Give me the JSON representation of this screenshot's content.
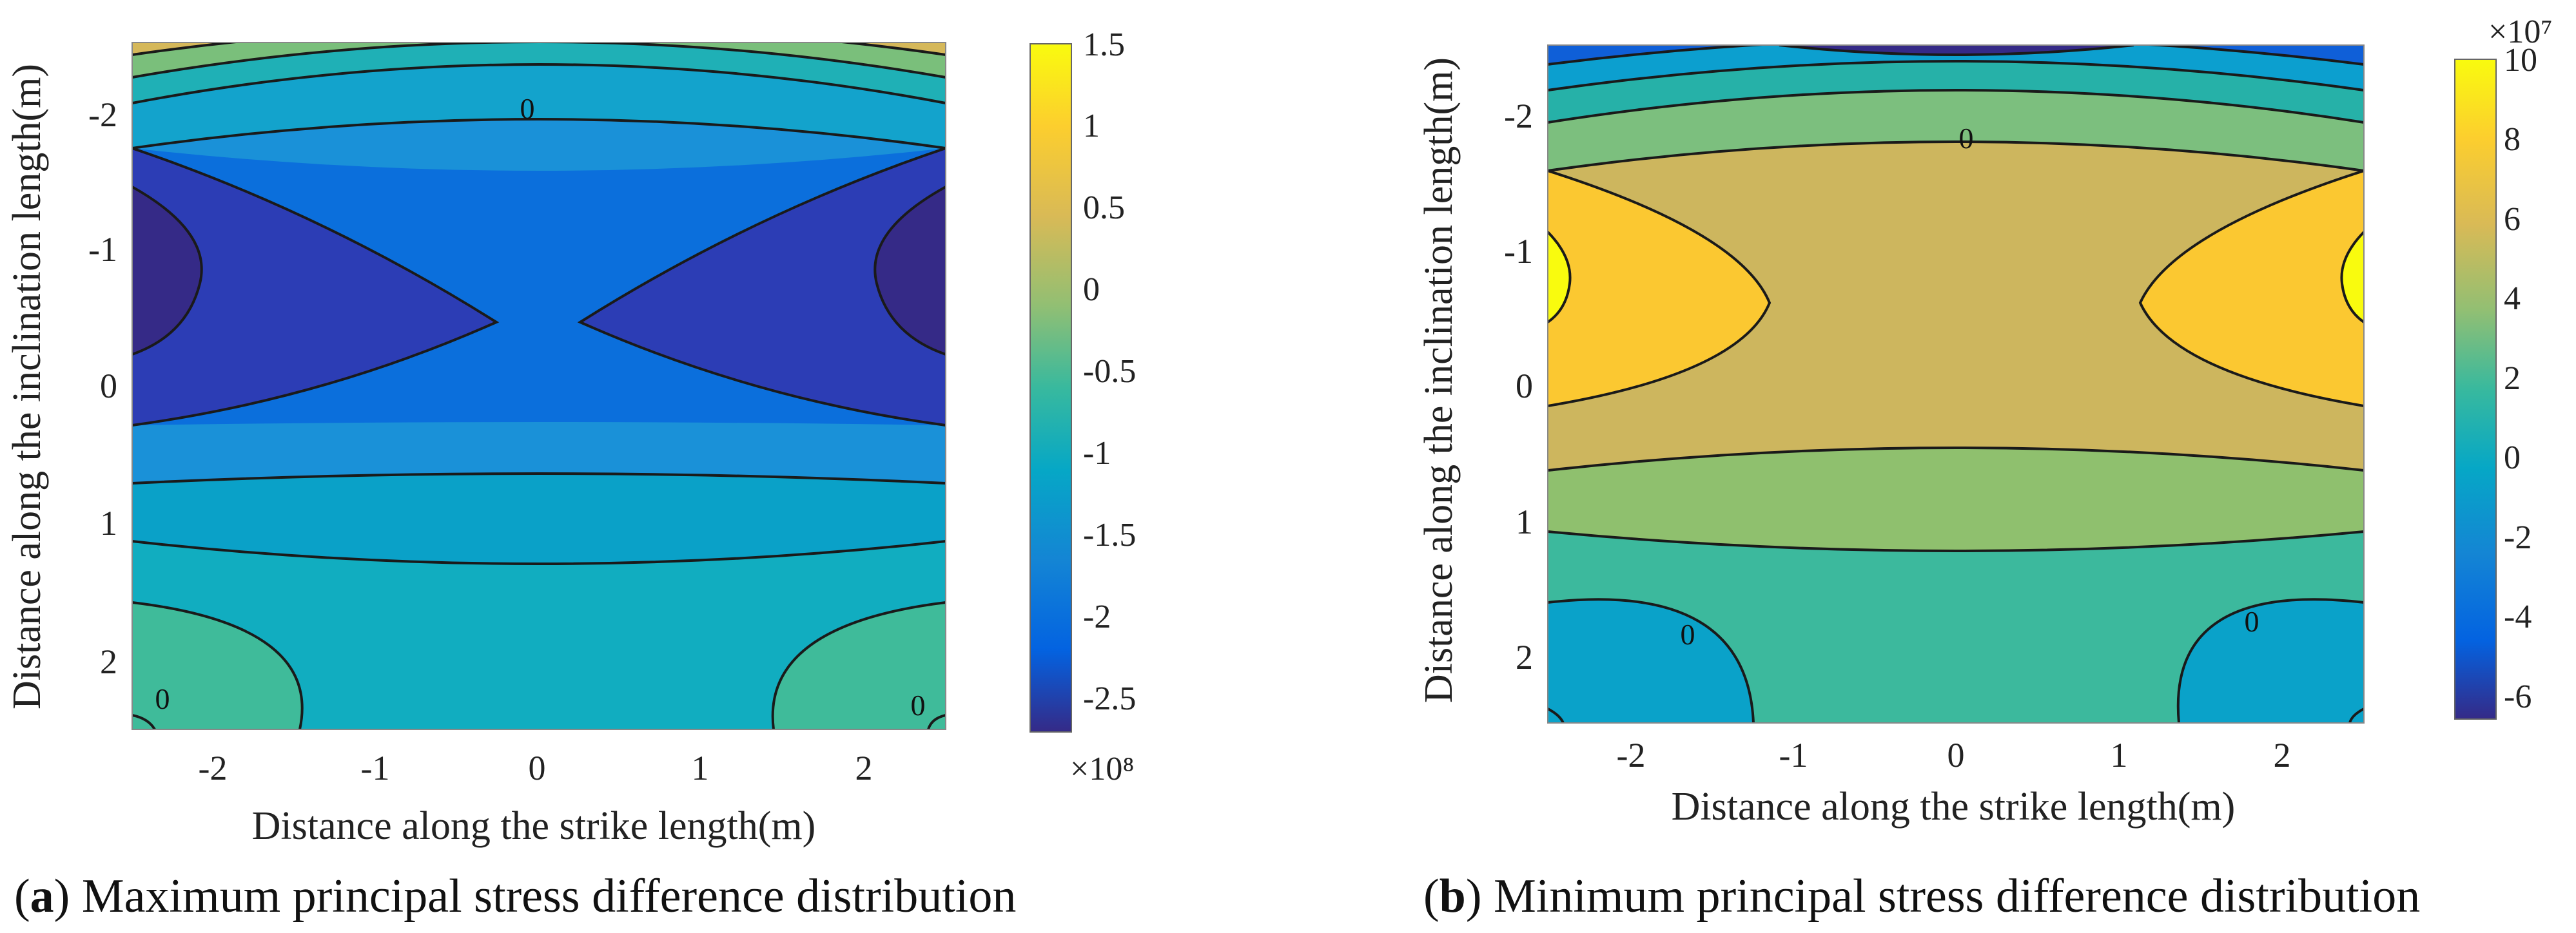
{
  "chart_data": [
    {
      "type": "contour",
      "caption_letter": "a",
      "caption_text": "Maximum principal stress difference distribution",
      "xlabel": "Distance along the strike length(m)",
      "ylabel": "Distance along the inclination length(m)",
      "xlim": [
        -2.5,
        2.5
      ],
      "ylim": [
        -2.5,
        2.5
      ],
      "y_inverted": true,
      "xticks": [
        "-2",
        "-1",
        "0",
        "1",
        "2"
      ],
      "yticks": [
        "-2",
        "-1",
        "0",
        "1",
        "2"
      ],
      "colorbar": {
        "ticks": [
          "1.5",
          "1",
          "0.5",
          "0",
          "-0.5",
          "-1",
          "-1.5",
          "-2",
          "-2.5"
        ],
        "min": -2.7,
        "max": 1.5,
        "multiplier": "×10⁸",
        "colormap": "parula"
      },
      "contour_labels": [
        "0",
        "0",
        "0"
      ]
    },
    {
      "type": "contour",
      "caption_letter": "b",
      "caption_text": "Minimum principal stress difference distribution",
      "xlabel": "Distance along the strike length(m)",
      "ylabel": "Distance along the inclination length(m)",
      "xlim": [
        -2.5,
        2.5
      ],
      "ylim": [
        -2.5,
        2.5
      ],
      "y_inverted": true,
      "xticks": [
        "-2",
        "-1",
        "0",
        "1",
        "2"
      ],
      "yticks": [
        "-2",
        "-1",
        "0",
        "1",
        "2"
      ],
      "colorbar": {
        "ticks": [
          "10",
          "8",
          "6",
          "4",
          "2",
          "0",
          "-2",
          "-4",
          "-6"
        ],
        "min": -6.6,
        "max": 10,
        "multiplier": "×10⁷",
        "colormap": "parula"
      },
      "contour_labels": [
        "0",
        "0",
        "0"
      ]
    }
  ]
}
